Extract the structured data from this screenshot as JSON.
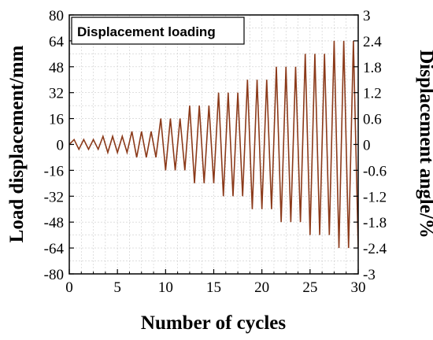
{
  "chart_data": {
    "type": "line",
    "title": "Displacement loading",
    "xlabel": "Number of cycles",
    "ylabel": "Load displacement/mm",
    "y2label": "Displacement angle/%",
    "xlim": [
      0,
      30
    ],
    "ylim": [
      -80,
      80
    ],
    "y2lim": [
      -3,
      3
    ],
    "x_ticks": [
      0,
      5,
      10,
      15,
      20,
      25,
      30
    ],
    "y_ticks": [
      80,
      64,
      48,
      32,
      16,
      0,
      -16,
      -32,
      -48,
      -64,
      -80
    ],
    "y2_ticks": [
      "3",
      "2.4",
      "1.8",
      "1.2",
      "0.6",
      "0",
      "-0.6",
      "-1.2",
      "-1.8",
      "-2.4",
      "-3"
    ],
    "grid": true,
    "legend_position": "top-left",
    "colors": {
      "series": "#8b3a1a",
      "axis": "#000000",
      "grid": "#cccccc"
    },
    "series": [
      {
        "name": "",
        "amplitudes_mm": [
          3,
          3,
          3,
          5,
          5,
          5,
          8,
          8,
          8,
          16,
          16,
          16,
          24,
          24,
          24,
          32,
          32,
          32,
          40,
          40,
          40,
          48,
          48,
          48,
          56,
          56,
          56,
          64,
          64,
          64,
          72,
          72
        ]
      }
    ]
  }
}
